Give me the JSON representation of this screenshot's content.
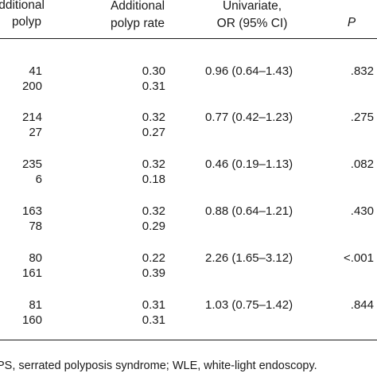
{
  "header": {
    "col1": [
      "dditional",
      "polyp"
    ],
    "col2": [
      "Additional",
      "polyp rate"
    ],
    "col3": [
      "Univariate,",
      "OR (95% CI)"
    ],
    "col4": "P"
  },
  "groups": [
    {
      "rows": [
        [
          "41",
          "0.30"
        ],
        [
          "200",
          "0.31"
        ]
      ],
      "or": "0.96 (0.64–1.43)",
      "p": ".832"
    },
    {
      "rows": [
        [
          "214",
          "0.32"
        ],
        [
          "27",
          "0.27"
        ]
      ],
      "or": "0.77 (0.42–1.23)",
      "p": ".275"
    },
    {
      "rows": [
        [
          "235",
          "0.32"
        ],
        [
          "6",
          "0.18"
        ]
      ],
      "or": "0.46 (0.19–1.13)",
      "p": ".082"
    },
    {
      "rows": [
        [
          "163",
          "0.32"
        ],
        [
          "78",
          "0.29"
        ]
      ],
      "or": "0.88 (0.64–1.21)",
      "p": ".430"
    },
    {
      "rows": [
        [
          "80",
          "0.22"
        ],
        [
          "161",
          "0.39"
        ]
      ],
      "or": "2.26 (1.65–3.12)",
      "p": "<.001"
    },
    {
      "rows": [
        [
          "81",
          "0.31"
        ],
        [
          "160",
          "0.31"
        ]
      ],
      "or": "1.03 (0.75–1.42)",
      "p": ".844"
    }
  ],
  "footnote": "PS, serrated polyposis syndrome; WLE, white-light endoscopy."
}
